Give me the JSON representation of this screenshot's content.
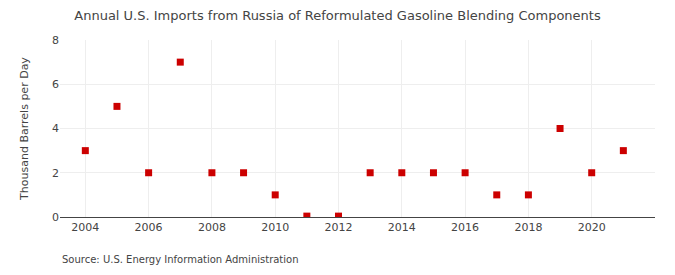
{
  "chart_data": {
    "type": "scatter",
    "title": "Annual U.S. Imports from Russia of Reformulated Gasoline Blending Components",
    "ylabel": "Thousand Barrels per Day",
    "source": "Source: U.S. Energy Information Administration",
    "x": [
      2004,
      2005,
      2006,
      2007,
      2008,
      2009,
      2010,
      2011,
      2012,
      2013,
      2014,
      2015,
      2016,
      2017,
      2018,
      2019,
      2020,
      2021
    ],
    "values": [
      3,
      5,
      2,
      7,
      2,
      2,
      1,
      0.04,
      0.04,
      2,
      2,
      2,
      2,
      1,
      1,
      4,
      2,
      3
    ],
    "color": "#cc0000",
    "marker": "square",
    "ylim": [
      0,
      8
    ],
    "yticks": [
      0,
      2,
      4,
      6,
      8
    ],
    "xlim": [
      2003.2,
      2022
    ],
    "xticks": [
      2004,
      2006,
      2008,
      2010,
      2012,
      2014,
      2016,
      2018,
      2020
    ],
    "grid": true
  }
}
